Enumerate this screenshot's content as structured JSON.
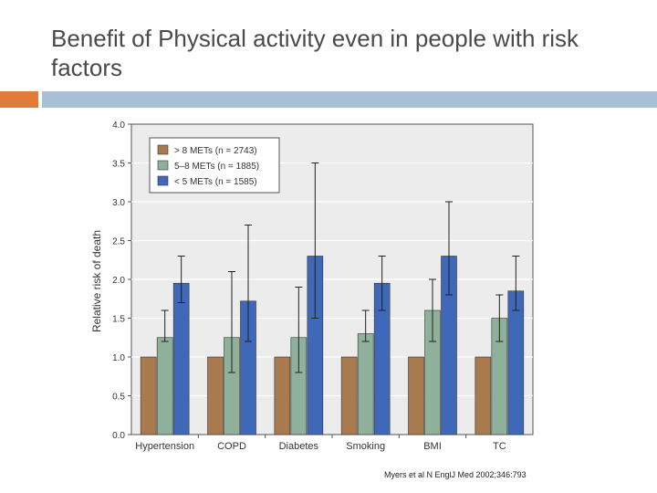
{
  "slide": {
    "title": "Benefit of Physical activity even in people with risk factors",
    "citation": "Myers et al N EnglJ Med 2002;346:793"
  },
  "colors": {
    "accent": "#e07b39",
    "rule": "#a8bfd4"
  },
  "chart_data": {
    "type": "bar",
    "title": "",
    "xlabel": "",
    "ylabel": "Relative risk of death",
    "ylim": [
      0,
      4.0
    ],
    "yticks": [
      "0.0",
      "0.5",
      "1.0",
      "1.5",
      "2.0",
      "2.5",
      "3.0",
      "3.5",
      "4.0"
    ],
    "categories": [
      "Hypertension",
      "COPD",
      "Diabetes",
      "Smoking",
      "BMI",
      "TC"
    ],
    "legend_position": "top-left",
    "series": [
      {
        "name": "> 8 METs (n = 2743)",
        "color": "#a87a4e",
        "values": [
          1.0,
          1.0,
          1.0,
          1.0,
          1.0,
          1.0
        ],
        "err_low": [
          null,
          null,
          null,
          null,
          null,
          null
        ],
        "err_high": [
          null,
          null,
          null,
          null,
          null,
          null
        ]
      },
      {
        "name": "5–8 METs (n = 1885)",
        "color": "#8fb09a",
        "values": [
          1.25,
          1.25,
          1.25,
          1.3,
          1.6,
          1.5
        ],
        "err_low": [
          1.2,
          0.8,
          0.8,
          1.2,
          1.2,
          1.2
        ],
        "err_high": [
          1.6,
          2.1,
          1.9,
          1.6,
          2.0,
          1.8
        ]
      },
      {
        "name": "< 5 METs (n = 1585)",
        "color": "#3f68b8",
        "values": [
          1.95,
          1.72,
          2.3,
          1.95,
          2.3,
          1.85
        ],
        "err_low": [
          1.7,
          1.2,
          1.5,
          1.6,
          1.8,
          1.6
        ],
        "err_high": [
          2.3,
          2.7,
          3.5,
          2.3,
          3.0,
          2.3
        ]
      }
    ]
  }
}
